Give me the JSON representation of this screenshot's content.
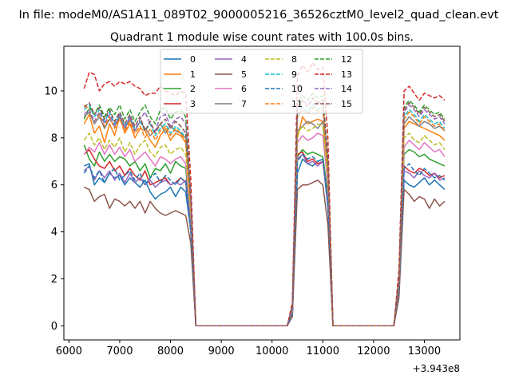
{
  "figure": {
    "suptitle": "In file: modeM0/AS1A11_089T02_9000005216_36526cztM0_level2_quad_clean.evt",
    "offset_text": "+3.943e8"
  },
  "chart_data": {
    "type": "line",
    "title": "Quadrant 1 module wise count rates with 100.0s bins.",
    "xlabel": "",
    "ylabel": "",
    "xlim": [
      5900,
      13700
    ],
    "ylim": [
      -0.6,
      11.9
    ],
    "xticks": [
      6000,
      7000,
      8000,
      9000,
      10000,
      11000,
      12000,
      13000
    ],
    "yticks": [
      0,
      2,
      4,
      6,
      8,
      10
    ],
    "grid": false,
    "legend": {
      "placement": "top-center",
      "ncol": 4
    },
    "x": [
      6300,
      6400,
      6500,
      6600,
      6700,
      6800,
      6900,
      7000,
      7100,
      7200,
      7300,
      7400,
      7500,
      7600,
      7700,
      7800,
      7900,
      8000,
      8100,
      8200,
      8300,
      8400,
      8500,
      8600,
      8700,
      8800,
      8900,
      9000,
      9100,
      9200,
      9300,
      9400,
      9500,
      9600,
      9700,
      9800,
      9900,
      10000,
      10100,
      10200,
      10300,
      10400,
      10500,
      10600,
      10700,
      10800,
      10900,
      11000,
      11100,
      11200,
      11300,
      11400,
      11500,
      11600,
      11700,
      11800,
      11900,
      12000,
      12100,
      12200,
      12300,
      12400,
      12500,
      12600,
      12700,
      12800,
      12900,
      13000,
      13100,
      13200,
      13300,
      13400
    ],
    "series": [
      {
        "name": "0",
        "color": "#1f77b4",
        "dash": "solid",
        "values": [
          6.8,
          6.9,
          6.0,
          6.3,
          6.1,
          6.5,
          6.3,
          6.4,
          6.0,
          6.3,
          6.1,
          5.9,
          6.2,
          5.7,
          5.4,
          5.6,
          5.7,
          5.9,
          5.5,
          5.9,
          5.7,
          4.0,
          0,
          0,
          0,
          0,
          0,
          0,
          0,
          0,
          0,
          0,
          0,
          0,
          0,
          0,
          0,
          0,
          0,
          0,
          0,
          0.5,
          6.5,
          7.1,
          6.9,
          6.8,
          7.0,
          7.1,
          5.0,
          0,
          0,
          0,
          0,
          0,
          0,
          0,
          0,
          0,
          0,
          0,
          0,
          0,
          1.5,
          6.2,
          6.0,
          5.9,
          6.1,
          6.3,
          6.0,
          6.2,
          6.0,
          5.8
        ]
      },
      {
        "name": "1",
        "color": "#ff7f0e",
        "dash": "solid",
        "values": [
          8.6,
          9.0,
          8.2,
          8.5,
          7.8,
          8.6,
          8.1,
          8.9,
          8.2,
          8.6,
          8.0,
          8.4,
          8.3,
          7.9,
          7.6,
          8.1,
          8.4,
          7.9,
          8.2,
          8.1,
          7.8,
          5.0,
          0,
          0,
          0,
          0,
          0,
          0,
          0,
          0,
          0,
          0,
          0,
          0,
          0,
          0,
          0,
          0,
          0,
          0,
          0,
          0.7,
          8.0,
          8.9,
          8.6,
          8.7,
          8.8,
          8.7,
          6.5,
          0,
          0,
          0,
          0,
          0,
          0,
          0,
          0,
          0,
          0,
          0,
          0,
          0,
          1.9,
          8.4,
          8.7,
          8.6,
          8.5,
          8.4,
          8.3,
          8.2,
          8.1,
          7.9
        ]
      },
      {
        "name": "2",
        "color": "#2ca02c",
        "dash": "solid",
        "values": [
          7.7,
          7.1,
          6.8,
          7.4,
          7.0,
          7.3,
          7.0,
          7.2,
          7.1,
          6.8,
          7.0,
          6.6,
          6.9,
          6.3,
          6.7,
          6.6,
          6.9,
          6.5,
          7.0,
          6.8,
          6.7,
          4.3,
          0,
          0,
          0,
          0,
          0,
          0,
          0,
          0,
          0,
          0,
          0,
          0,
          0,
          0,
          0,
          0,
          0,
          0,
          0,
          0.6,
          7.2,
          7.5,
          7.3,
          7.4,
          7.3,
          7.2,
          5.6,
          0,
          0,
          0,
          0,
          0,
          0,
          0,
          0,
          0,
          0,
          0,
          0,
          0,
          1.6,
          7.3,
          7.5,
          7.4,
          7.2,
          7.3,
          7.1,
          7.0,
          6.9,
          6.8
        ]
      },
      {
        "name": "3",
        "color": "#d62728",
        "dash": "solid",
        "values": [
          7.3,
          7.5,
          7.1,
          6.8,
          6.7,
          7.0,
          6.6,
          6.8,
          6.4,
          6.7,
          6.4,
          6.2,
          6.6,
          6.0,
          6.1,
          6.2,
          6.3,
          6.0,
          6.1,
          6.3,
          6.1,
          4.1,
          0,
          0,
          0,
          0,
          0,
          0,
          0,
          0,
          0,
          0,
          0,
          0,
          0,
          0,
          0,
          0,
          0,
          0,
          0,
          0.5,
          7.3,
          7.4,
          7.0,
          7.1,
          6.9,
          7.0,
          5.3,
          0,
          0,
          0,
          0,
          0,
          0,
          0,
          0,
          0,
          0,
          0,
          0,
          0,
          1.5,
          6.8,
          6.6,
          6.5,
          6.7,
          6.6,
          6.4,
          6.5,
          6.3,
          6.4
        ]
      },
      {
        "name": "4",
        "color": "#9467bd",
        "dash": "solid",
        "values": [
          6.6,
          6.8,
          6.2,
          6.6,
          6.3,
          6.6,
          6.2,
          6.5,
          6.1,
          6.5,
          6.1,
          6.3,
          6.0,
          6.2,
          5.9,
          6.1,
          6.2,
          6.0,
          6.1,
          6.0,
          6.2,
          4.0,
          0,
          0,
          0,
          0,
          0,
          0,
          0,
          0,
          0,
          0,
          0,
          0,
          0,
          0,
          0,
          0,
          0,
          0,
          0,
          0.5,
          7.1,
          7.3,
          6.9,
          7.0,
          6.8,
          7.0,
          5.2,
          0,
          0,
          0,
          0,
          0,
          0,
          0,
          0,
          0,
          0,
          0,
          0,
          0,
          1.5,
          6.6,
          6.5,
          6.3,
          6.6,
          6.4,
          6.3,
          6.5,
          6.2,
          6.3
        ]
      },
      {
        "name": "5",
        "color": "#8c564b",
        "dash": "solid",
        "values": [
          5.9,
          5.8,
          5.3,
          5.5,
          5.6,
          5.0,
          5.4,
          5.3,
          5.1,
          5.3,
          5.0,
          5.3,
          4.8,
          5.3,
          5.0,
          4.8,
          4.7,
          4.8,
          4.9,
          4.8,
          4.7,
          3.5,
          0,
          0,
          0,
          0,
          0,
          0,
          0,
          0,
          0,
          0,
          0,
          0,
          0,
          0,
          0,
          0,
          0,
          0,
          0,
          0.4,
          5.8,
          6.0,
          6.0,
          6.1,
          6.2,
          6.0,
          4.3,
          0,
          0,
          0,
          0,
          0,
          0,
          0,
          0,
          0,
          0,
          0,
          0,
          0,
          1.2,
          5.8,
          5.6,
          5.3,
          5.5,
          5.4,
          5.0,
          5.4,
          5.1,
          5.3
        ]
      },
      {
        "name": "6",
        "color": "#e377c2",
        "dash": "solid",
        "values": [
          7.3,
          7.6,
          7.4,
          7.8,
          7.3,
          7.7,
          7.3,
          7.6,
          7.2,
          7.5,
          7.0,
          7.2,
          7.4,
          7.1,
          6.8,
          7.2,
          7.1,
          6.9,
          7.1,
          7.2,
          6.9,
          4.6,
          0,
          0,
          0,
          0,
          0,
          0,
          0,
          0,
          0,
          0,
          0,
          0,
          0,
          0,
          0,
          0,
          0,
          0,
          0,
          0.6,
          7.8,
          8.1,
          7.9,
          8.0,
          8.2,
          8.1,
          6.0,
          0,
          0,
          0,
          0,
          0,
          0,
          0,
          0,
          0,
          0,
          0,
          0,
          0,
          1.7,
          7.6,
          7.9,
          7.7,
          7.5,
          7.8,
          7.6,
          7.4,
          7.5,
          7.2
        ]
      },
      {
        "name": "7",
        "color": "#7f7f7f",
        "dash": "solid",
        "values": [
          8.9,
          9.1,
          8.6,
          8.9,
          8.4,
          8.8,
          8.5,
          8.9,
          8.4,
          8.8,
          8.3,
          8.7,
          8.4,
          8.1,
          8.3,
          8.6,
          8.2,
          8.5,
          8.3,
          8.2,
          8.0,
          5.2,
          0,
          0,
          0,
          0,
          0,
          0,
          0,
          0,
          0,
          0,
          0,
          0,
          0,
          0,
          0,
          0,
          0,
          0,
          0,
          0.8,
          8.3,
          8.5,
          8.7,
          8.6,
          8.4,
          8.7,
          6.7,
          0,
          0,
          0,
          0,
          0,
          0,
          0,
          0,
          0,
          0,
          0,
          0,
          0,
          2.0,
          8.6,
          8.9,
          8.7,
          8.5,
          8.7,
          8.6,
          8.4,
          8.5,
          8.3
        ]
      },
      {
        "name": "8",
        "color": "#bcbd22",
        "dash": "dashed",
        "values": [
          7.9,
          8.2,
          7.7,
          8.0,
          7.5,
          7.9,
          7.6,
          8.0,
          7.4,
          7.8,
          7.3,
          7.7,
          7.9,
          7.4,
          7.2,
          7.6,
          7.7,
          7.3,
          7.5,
          7.6,
          7.3,
          4.8,
          0,
          0,
          0,
          0,
          0,
          0,
          0,
          0,
          0,
          0,
          0,
          0,
          0,
          0,
          0,
          0,
          0,
          0,
          0,
          0.7,
          8.2,
          8.5,
          8.3,
          8.4,
          8.6,
          8.5,
          6.3,
          0,
          0,
          0,
          0,
          0,
          0,
          0,
          0,
          0,
          0,
          0,
          0,
          0,
          1.8,
          8.0,
          8.2,
          7.9,
          7.8,
          8.1,
          7.9,
          7.7,
          7.8,
          7.5
        ]
      },
      {
        "name": "9",
        "color": "#17becf",
        "dash": "dashed",
        "values": [
          9.2,
          9.4,
          8.9,
          9.2,
          8.7,
          9.1,
          8.6,
          9.0,
          8.5,
          8.9,
          8.4,
          8.7,
          8.3,
          8.6,
          8.1,
          8.4,
          8.6,
          8.2,
          8.5,
          8.3,
          8.0,
          5.3,
          0,
          0,
          0,
          0,
          0,
          0,
          0,
          0,
          0,
          0,
          0,
          0,
          0,
          0,
          0,
          0,
          0,
          0,
          0,
          0.8,
          9.0,
          9.3,
          9.1,
          9.4,
          9.2,
          9.3,
          6.9,
          0,
          0,
          0,
          0,
          0,
          0,
          0,
          0,
          0,
          0,
          0,
          0,
          0,
          2.0,
          8.9,
          9.2,
          9.0,
          8.7,
          9.0,
          8.8,
          8.6,
          8.7,
          8.4
        ]
      },
      {
        "name": "10",
        "color": "#1f77b4",
        "dash": "dashed",
        "values": [
          6.5,
          6.8,
          6.3,
          6.6,
          6.1,
          6.5,
          6.7,
          6.2,
          6.4,
          6.6,
          6.2,
          6.5,
          6.0,
          6.3,
          6.5,
          6.1,
          6.4,
          6.2,
          6.0,
          6.3,
          6.1,
          4.1,
          0,
          0,
          0,
          0,
          0,
          0,
          0,
          0,
          0,
          0,
          0,
          0,
          0,
          0,
          0,
          0,
          0,
          0,
          0,
          0.5,
          7.0,
          7.3,
          7.1,
          7.2,
          7.0,
          7.1,
          5.3,
          0,
          0,
          0,
          0,
          0,
          0,
          0,
          0,
          0,
          0,
          0,
          0,
          0,
          1.5,
          6.7,
          6.9,
          6.6,
          6.4,
          6.7,
          6.5,
          6.3,
          6.4,
          6.2
        ]
      },
      {
        "name": "11",
        "color": "#ff7f0e",
        "dash": "dashed",
        "values": [
          9.4,
          9.2,
          8.7,
          9.0,
          8.5,
          8.9,
          8.4,
          8.8,
          8.3,
          8.7,
          8.2,
          8.5,
          8.0,
          8.4,
          7.9,
          8.3,
          8.5,
          8.1,
          8.4,
          8.2,
          7.9,
          5.2,
          0,
          0,
          0,
          0,
          0,
          0,
          0,
          0,
          0,
          0,
          0,
          0,
          0,
          0,
          0,
          0,
          0,
          0,
          0,
          0.8,
          8.9,
          9.2,
          9.0,
          9.3,
          9.1,
          9.2,
          6.8,
          0,
          0,
          0,
          0,
          0,
          0,
          0,
          0,
          0,
          0,
          0,
          0,
          0,
          1.9,
          8.8,
          9.1,
          8.9,
          8.6,
          8.9,
          8.7,
          8.5,
          8.6,
          8.3
        ]
      },
      {
        "name": "12",
        "color": "#2ca02c",
        "dash": "dashed",
        "values": [
          8.8,
          9.3,
          9.0,
          9.4,
          8.9,
          9.3,
          9.0,
          9.4,
          8.8,
          9.2,
          8.7,
          9.1,
          9.4,
          8.9,
          8.6,
          9.2,
          9.3,
          8.8,
          9.1,
          9.2,
          8.9,
          5.6,
          0,
          0,
          0,
          0,
          0,
          0,
          0,
          0,
          0,
          0,
          0,
          0,
          0,
          0,
          0,
          0,
          0,
          0,
          0,
          0.9,
          9.5,
          9.8,
          9.6,
          9.9,
          9.7,
          9.8,
          7.2,
          0,
          0,
          0,
          0,
          0,
          0,
          0,
          0,
          0,
          0,
          0,
          0,
          0,
          2.1,
          9.3,
          9.6,
          9.4,
          9.1,
          9.4,
          9.2,
          9.0,
          9.1,
          8.8
        ]
      },
      {
        "name": "13",
        "color": "#d62728",
        "dash": "dashed",
        "values": [
          10.1,
          10.8,
          10.7,
          10.0,
          10.3,
          10.4,
          10.2,
          10.4,
          10.3,
          10.4,
          10.2,
          10.1,
          9.8,
          9.9,
          9.9,
          10.2,
          10.0,
          9.9,
          9.8,
          10.0,
          9.9,
          6.2,
          0,
          0,
          0,
          0,
          0,
          0,
          0,
          0,
          0,
          0,
          0,
          0,
          0,
          0,
          0,
          0,
          0,
          0,
          0,
          1.0,
          10.6,
          11.1,
          10.8,
          11.2,
          10.9,
          11.0,
          8.0,
          0,
          0,
          0,
          0,
          0,
          0,
          0,
          0,
          0,
          0,
          0,
          0,
          0,
          2.4,
          10.0,
          10.2,
          9.9,
          9.6,
          9.9,
          9.8,
          9.7,
          9.8,
          9.6
        ]
      },
      {
        "name": "14",
        "color": "#9467bd",
        "dash": "dashed",
        "values": [
          9.0,
          9.2,
          8.7,
          9.1,
          8.6,
          9.0,
          8.5,
          9.0,
          8.4,
          8.9,
          8.3,
          8.8,
          9.1,
          8.6,
          8.3,
          8.9,
          9.0,
          8.5,
          8.8,
          8.9,
          8.6,
          5.4,
          0,
          0,
          0,
          0,
          0,
          0,
          0,
          0,
          0,
          0,
          0,
          0,
          0,
          0,
          0,
          0,
          0,
          0,
          0,
          0.8,
          9.3,
          9.6,
          9.4,
          9.7,
          9.5,
          9.6,
          7.0,
          0,
          0,
          0,
          0,
          0,
          0,
          0,
          0,
          0,
          0,
          0,
          0,
          0,
          2.0,
          9.1,
          9.4,
          9.2,
          8.9,
          9.2,
          9.0,
          8.8,
          8.9,
          8.6
        ]
      },
      {
        "name": "15",
        "color": "#8c564b",
        "dash": "dashed",
        "values": [
          9.3,
          9.5,
          9.0,
          9.3,
          8.8,
          9.2,
          8.7,
          9.1,
          8.6,
          9.0,
          8.5,
          8.9,
          8.3,
          8.7,
          8.2,
          8.6,
          8.8,
          8.4,
          8.7,
          8.5,
          8.2,
          5.4,
          0,
          0,
          0,
          0,
          0,
          0,
          0,
          0,
          0,
          0,
          0,
          0,
          0,
          0,
          0,
          0,
          0,
          0,
          0,
          0.8,
          9.4,
          9.6,
          9.3,
          9.7,
          9.5,
          9.6,
          7.0,
          0,
          0,
          0,
          0,
          0,
          0,
          0,
          0,
          0,
          0,
          0,
          0,
          0,
          2.0,
          9.2,
          9.5,
          9.3,
          9.0,
          9.3,
          9.1,
          8.9,
          9.0,
          8.7
        ]
      }
    ]
  }
}
